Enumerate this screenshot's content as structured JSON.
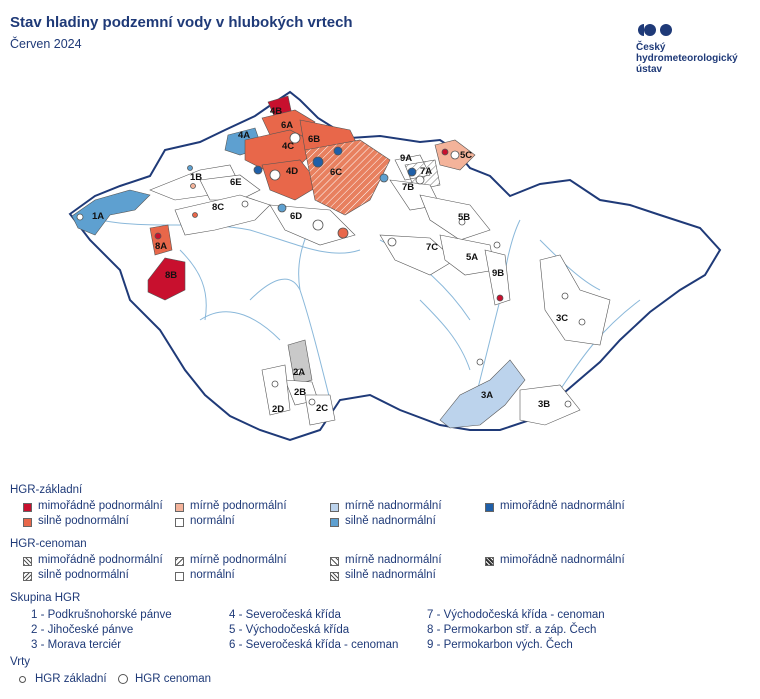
{
  "title": "Stav hladiny podzemní vody v hlubokých vrtech",
  "subtitle": "Červen 2024",
  "logo": {
    "lines": [
      "Český",
      "hydrometeorologický",
      "ústav"
    ]
  },
  "colors": {
    "extreme_below": "#c8102e",
    "strong_below": "#e8674a",
    "mild_below": "#f4b39a",
    "normal": "#ffffff",
    "mild_above": "#bcd3ec",
    "strong_above": "#5ea0d0",
    "extreme_above": "#1f5fa8",
    "border": "#1f3a78",
    "river": "#8ab8da"
  },
  "regions": [
    "1A",
    "1B",
    "2A",
    "2B",
    "2C",
    "2D",
    "3A",
    "3B",
    "3C",
    "4A",
    "4B",
    "4C",
    "4D",
    "5A",
    "5B",
    "5C",
    "6A",
    "6B",
    "6C",
    "6D",
    "6E",
    "7A",
    "7B",
    "7C",
    "8A",
    "8B",
    "8C",
    "9A",
    "9B"
  ],
  "legend": {
    "zakladni_title": "HGR-základní",
    "zakladni_items": [
      "mimořádně podnormální",
      "mírně podnormální",
      "mírně nadnormální",
      "mimořádně nadnormální",
      "silně podnormální",
      "normální",
      "silně nadnormální"
    ],
    "cenoman_title": "HGR-cenoman",
    "cenoman_items": [
      "mimořádně podnormální",
      "mírně podnormální",
      "mírně nadnormální",
      "mimořádně nadnormální",
      "silně podnormální",
      "normální",
      "silně nadnormální"
    ],
    "skupina_title": "Skupina HGR",
    "skupina_items": [
      "1 - Podkrušnohorské pánve",
      "4 - Severočeská křída",
      "7 - Východočeská křída - cenoman",
      "2 - Jihočeské pánve",
      "5 - Východočeská křída",
      "8 - Permokarbon stř. a záp. Čech",
      "3 - Morava terciér",
      "6 - Severočeská křída - cenoman",
      "9 - Permokarbon vých. Čech"
    ],
    "vrty_title": "Vrty",
    "vrty_items": [
      "HGR základní",
      "HGR cenoman"
    ]
  }
}
